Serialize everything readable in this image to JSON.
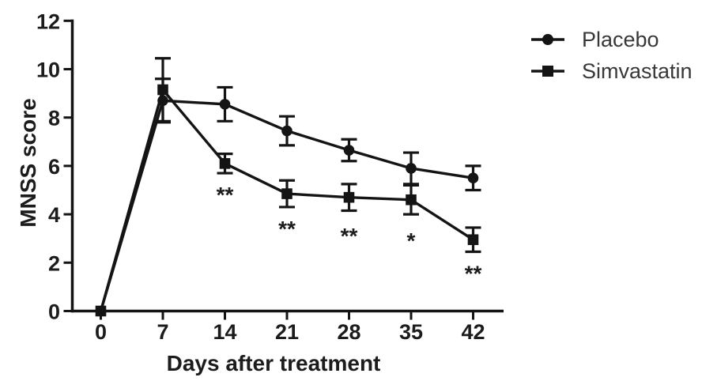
{
  "chart_data": {
    "type": "line",
    "title": "",
    "xlabel": "Days after treatment",
    "ylabel": "MNSS score",
    "x": [
      0,
      7,
      14,
      21,
      28,
      35,
      42
    ],
    "xticks": [
      0,
      7,
      14,
      21,
      28,
      35,
      42
    ],
    "yticks": [
      0,
      2,
      4,
      6,
      8,
      10,
      12
    ],
    "xlim": [
      0,
      45
    ],
    "ylim": [
      0,
      12
    ],
    "grid": false,
    "legend_position": "top-right",
    "series": [
      {
        "name": "Placebo",
        "marker": "circle",
        "values": [
          0,
          8.7,
          8.55,
          7.45,
          6.65,
          5.9,
          5.5
        ],
        "errors": [
          0,
          0.9,
          0.7,
          0.6,
          0.45,
          0.65,
          0.5
        ]
      },
      {
        "name": "Simvastatin",
        "marker": "square",
        "values": [
          0,
          9.15,
          6.1,
          4.85,
          4.7,
          4.6,
          2.95
        ],
        "errors": [
          0,
          1.3,
          0.4,
          0.55,
          0.55,
          0.6,
          0.5
        ]
      }
    ],
    "annotations": [
      {
        "x": 14,
        "y": 4.95,
        "text": "**"
      },
      {
        "x": 21,
        "y": 3.55,
        "text": "**"
      },
      {
        "x": 28,
        "y": 3.25,
        "text": "**"
      },
      {
        "x": 35,
        "y": 3.05,
        "text": "*"
      },
      {
        "x": 42,
        "y": 1.7,
        "text": "**"
      }
    ],
    "colors": {
      "stroke": "#141414",
      "tick_text": "#1c1c1c",
      "legend_text": "#383838"
    }
  }
}
